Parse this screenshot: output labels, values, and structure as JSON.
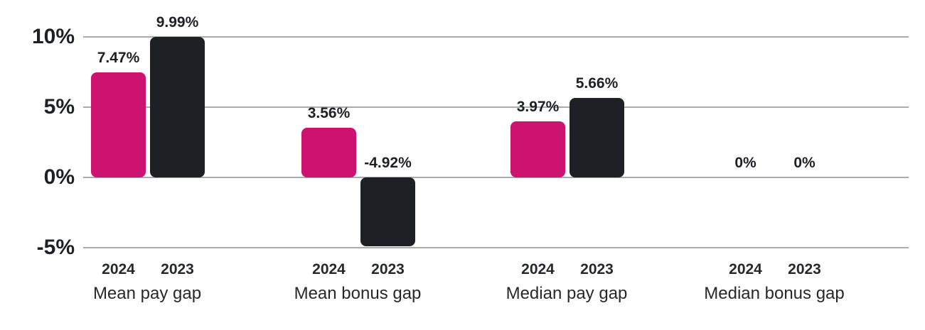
{
  "chart_data": {
    "type": "bar",
    "title": "",
    "unit": "%",
    "categories": [
      "Mean pay gap",
      "Mean bonus gap",
      "Median pay gap",
      "Median bonus gap"
    ],
    "series": [
      {
        "name": "2024",
        "color": "#ce1270",
        "values": [
          7.47,
          3.56,
          3.97,
          0
        ]
      },
      {
        "name": "2023",
        "color": "#1d2126",
        "values": [
          9.99,
          -4.92,
          5.66,
          0
        ]
      }
    ],
    "value_labels": [
      [
        "7.47%",
        "9.99%"
      ],
      [
        "3.56%",
        "-4.92%"
      ],
      [
        "3.97%",
        "5.66%"
      ],
      [
        "0%",
        "0%"
      ]
    ],
    "y_axis": {
      "range": [
        -5,
        10
      ],
      "ticks": [
        {
          "value": 10,
          "label": "10%"
        },
        {
          "value": 5,
          "label": "5%"
        },
        {
          "value": 0,
          "label": "0%"
        },
        {
          "value": -5,
          "label": "-5%"
        }
      ]
    },
    "grid": true,
    "legend_position": "none"
  },
  "colors": {
    "series_2024": "#ce1270",
    "series_2023": "#1d2126",
    "gridline": "#ababab",
    "text": "#1d2126",
    "background": "#ffffff"
  }
}
